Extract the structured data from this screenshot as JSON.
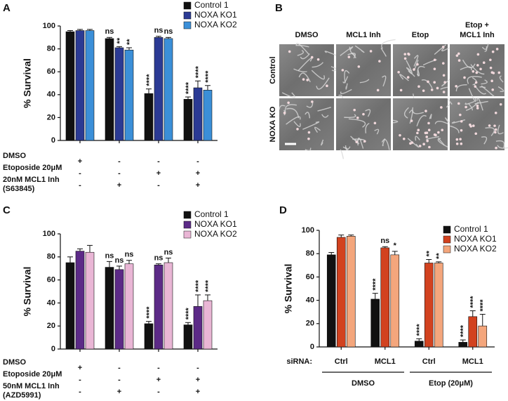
{
  "chart_data": [
    {
      "panel": "A",
      "type": "bar",
      "ylabel": "% Survival",
      "ylim": [
        0,
        100
      ],
      "yticks": [
        0,
        20,
        40,
        60,
        80,
        100
      ],
      "legend": "upper right",
      "series": [
        {
          "name": "Control 1",
          "color": "#111111",
          "values": [
            95,
            89,
            41,
            36
          ],
          "errors": [
            1,
            1,
            4,
            2
          ],
          "annotations": [
            null,
            "ns",
            "****",
            "****"
          ]
        },
        {
          "name": "NOXA KO1",
          "color": "#2b3a94",
          "values": [
            96,
            81,
            90,
            46
          ],
          "errors": [
            1,
            1,
            1,
            6
          ],
          "annotations": [
            null,
            "**",
            "ns",
            "****"
          ]
        },
        {
          "name": "NOXA KO2",
          "color": "#3b8fd8",
          "values": [
            96,
            79,
            89,
            44
          ],
          "errors": [
            1,
            2,
            1,
            4
          ],
          "annotations": [
            null,
            "**",
            "ns",
            "****"
          ]
        }
      ],
      "conditions": [
        {
          "label": "DMSO",
          "marks": [
            "+",
            "-",
            "-",
            "-"
          ]
        },
        {
          "label": "Etoposide 20μM",
          "marks": [
            "-",
            "-",
            "+",
            "+"
          ]
        },
        {
          "label": "20nM MCL1 Inh",
          "sublabel": "(S63845)",
          "marks": [
            "-",
            "+",
            "-",
            "+"
          ]
        }
      ]
    },
    {
      "panel": "C",
      "type": "bar",
      "ylabel": "% Survival",
      "ylim": [
        0,
        100
      ],
      "yticks": [
        0,
        20,
        40,
        60,
        80,
        100
      ],
      "legend": "upper right",
      "series": [
        {
          "name": "Control 1",
          "color": "#111111",
          "values": [
            75,
            71,
            22,
            21
          ],
          "errors": [
            5,
            5,
            2,
            2
          ],
          "annotations": [
            null,
            "ns",
            "****",
            "****"
          ]
        },
        {
          "name": "NOXA KO1",
          "color": "#5c2a87",
          "values": [
            85,
            69,
            73,
            37
          ],
          "errors": [
            2,
            3,
            1,
            10
          ],
          "annotations": [
            null,
            "ns",
            "ns",
            "****"
          ]
        },
        {
          "name": "NOXA KO2",
          "color": "#e9b6d5",
          "values": [
            84,
            74,
            75,
            42
          ],
          "errors": [
            6,
            3,
            4,
            5
          ],
          "annotations": [
            null,
            "ns",
            "ns",
            "****"
          ]
        }
      ],
      "conditions": [
        {
          "label": "DMSO",
          "marks": [
            "+",
            "-",
            "-",
            "-"
          ]
        },
        {
          "label": "Etoposide 20μM",
          "marks": [
            "-",
            "-",
            "+",
            "+"
          ]
        },
        {
          "label": "50nM MCL1 Inh",
          "sublabel": "(AZD5991)",
          "marks": [
            "-",
            "+",
            "-",
            "+"
          ]
        }
      ]
    },
    {
      "panel": "D",
      "type": "bar",
      "ylabel": "% Survival",
      "ylim": [
        0,
        100
      ],
      "yticks": [
        0,
        20,
        40,
        60,
        80,
        100
      ],
      "legend": "upper right",
      "xlabel": "siRNA:",
      "categories": [
        "Ctrl",
        "MCL1",
        "Ctrl",
        "MCL1"
      ],
      "groups": [
        {
          "label": "DMSO",
          "size": 2
        },
        {
          "label": "Etop (20μM)",
          "size": 2
        }
      ],
      "series": [
        {
          "name": "Control 1",
          "color": "#111111",
          "values": [
            79,
            41,
            5,
            4
          ],
          "errors": [
            2,
            5,
            2,
            2
          ],
          "annotations": [
            null,
            "****",
            "****",
            "****"
          ]
        },
        {
          "name": "NOXA KO1",
          "color": "#d2421f",
          "values": [
            94,
            85,
            72,
            26
          ],
          "errors": [
            2,
            1,
            3,
            5
          ],
          "annotations": [
            null,
            "ns",
            "**",
            "****"
          ]
        },
        {
          "name": "NOXA KO2",
          "color": "#f4a67c",
          "values": [
            95,
            79,
            72,
            18
          ],
          "errors": [
            1,
            3,
            1,
            10
          ],
          "annotations": [
            null,
            "*",
            "**",
            "****"
          ]
        }
      ]
    }
  ],
  "image_panel": {
    "panel": "B",
    "columns": [
      [
        "DMSO"
      ],
      [
        "MCL1 Inh"
      ],
      [
        "Etop"
      ],
      [
        "Etop +",
        "MCL1 Inh"
      ]
    ],
    "rows": [
      "Control",
      "NOXA KO"
    ]
  }
}
